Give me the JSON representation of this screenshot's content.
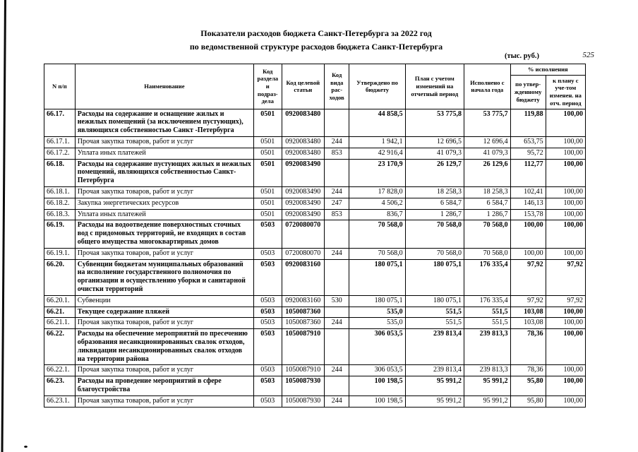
{
  "document": {
    "title_line1": "Показатели расходов бюджета Санкт-Петербурга за 2022 год",
    "title_line2": "по ведомственной структуре расходов бюджета Санкт-Петербурга",
    "units_note": "(тыс. руб.)",
    "page_number": "525"
  },
  "table": {
    "headers": {
      "num": "N п/п",
      "name": "Наименование",
      "razdel": "Код раздела и подраз-дела",
      "target": "Код целевой статьи",
      "vid": "Код вида рас-ходов",
      "approved": "Утверждено по бюджету",
      "plan": "План с учетом изменений на отчетный период",
      "executed": "Исполнено с начала года",
      "percent_group": "% исполнения",
      "pct_budget": "по утвер-жденному бюджету",
      "pct_plan": "к плану с уче-том изменен. на отч. период"
    },
    "rows": [
      {
        "num": "66.17.",
        "bold": true,
        "name": "Расходы на содержание и оснащение жилых и нежилых помещений (за исключением пустующих), являющихся собственностью Санкт -Петербурга",
        "razdel": "0501",
        "target": "0920083480",
        "vid": "",
        "approved": "44 858,5",
        "plan": "53 775,8",
        "executed": "53 775,7",
        "pct_budget": "119,88",
        "pct_plan": "100,00"
      },
      {
        "num": "66.17.1.",
        "bold": false,
        "name": "Прочая закупка товаров, работ и услуг",
        "razdel": "0501",
        "target": "0920083480",
        "vid": "244",
        "approved": "1 942,1",
        "plan": "12 696,5",
        "executed": "12 696,4",
        "pct_budget": "653,75",
        "pct_plan": "100,00"
      },
      {
        "num": "66.17.2.",
        "bold": false,
        "name": "Уплата иных платежей",
        "razdel": "0501",
        "target": "0920083480",
        "vid": "853",
        "approved": "42 916,4",
        "plan": "41 079,3",
        "executed": "41 079,3",
        "pct_budget": "95,72",
        "pct_plan": "100,00"
      },
      {
        "num": "66.18.",
        "bold": true,
        "name": "Расходы на содержание пустующих жилых и нежилых помещений, являющихся собственностью Санкт-Петербурга",
        "razdel": "0501",
        "target": "0920083490",
        "vid": "",
        "approved": "23 170,9",
        "plan": "26 129,7",
        "executed": "26 129,6",
        "pct_budget": "112,77",
        "pct_plan": "100,00"
      },
      {
        "num": "66.18.1.",
        "bold": false,
        "name": "Прочая закупка товаров, работ и услуг",
        "razdel": "0501",
        "target": "0920083490",
        "vid": "244",
        "approved": "17 828,0",
        "plan": "18 258,3",
        "executed": "18 258,3",
        "pct_budget": "102,41",
        "pct_plan": "100,00"
      },
      {
        "num": "66.18.2.",
        "bold": false,
        "name": "Закупка энергетических ресурсов",
        "razdel": "0501",
        "target": "0920083490",
        "vid": "247",
        "approved": "4 506,2",
        "plan": "6 584,7",
        "executed": "6 584,7",
        "pct_budget": "146,13",
        "pct_plan": "100,00"
      },
      {
        "num": "66.18.3.",
        "bold": false,
        "name": "Уплата иных платежей",
        "razdel": "0501",
        "target": "0920083490",
        "vid": "853",
        "approved": "836,7",
        "plan": "1 286,7",
        "executed": "1 286,7",
        "pct_budget": "153,78",
        "pct_plan": "100,00"
      },
      {
        "num": "66.19.",
        "bold": true,
        "name": "Расходы на водоотведение поверхностных сточных вод с придомовых территорий, не входящих в состав общего имущества многоквартирных домов",
        "razdel": "0503",
        "target": "0720080070",
        "vid": "",
        "approved": "70 568,0",
        "plan": "70 568,0",
        "executed": "70 568,0",
        "pct_budget": "100,00",
        "pct_plan": "100,00"
      },
      {
        "num": "66.19.1.",
        "bold": false,
        "name": "Прочая закупка товаров, работ и услуг",
        "razdel": "0503",
        "target": "0720080070",
        "vid": "244",
        "approved": "70 568,0",
        "plan": "70 568,0",
        "executed": "70 568,0",
        "pct_budget": "100,00",
        "pct_plan": "100,00"
      },
      {
        "num": "66.20.",
        "bold": true,
        "name": "Субвенции бюджетам муниципальных образований на исполнение государственного полномочия по организации и осуществлению уборки и санитарной очистки территорий",
        "razdel": "0503",
        "target": "0920083160",
        "vid": "",
        "approved": "180 075,1",
        "plan": "180 075,1",
        "executed": "176 335,4",
        "pct_budget": "97,92",
        "pct_plan": "97,92"
      },
      {
        "num": "66.20.1.",
        "bold": false,
        "name": "Субвенции",
        "razdel": "0503",
        "target": "0920083160",
        "vid": "530",
        "approved": "180 075,1",
        "plan": "180 075,1",
        "executed": "176 335,4",
        "pct_budget": "97,92",
        "pct_plan": "97,92"
      },
      {
        "num": "66.21.",
        "bold": true,
        "name": "Текущее содержание пляжей",
        "razdel": "0503",
        "target": "1050087360",
        "vid": "",
        "approved": "535,0",
        "plan": "551,5",
        "executed": "551,5",
        "pct_budget": "103,08",
        "pct_plan": "100,00"
      },
      {
        "num": "66.21.1.",
        "bold": false,
        "name": "Прочая закупка товаров, работ и услуг",
        "razdel": "0503",
        "target": "1050087360",
        "vid": "244",
        "approved": "535,0",
        "plan": "551,5",
        "executed": "551,5",
        "pct_budget": "103,08",
        "pct_plan": "100,00"
      },
      {
        "num": "66.22.",
        "bold": true,
        "name": "Расходы на обеспечение мероприятий по пресечению образования несанкционированных свалок отходов, ликвидации несанкционированных свалок отходов на территории района",
        "razdel": "0503",
        "target": "1050087910",
        "vid": "",
        "approved": "306 053,5",
        "plan": "239 813,4",
        "executed": "239 813,3",
        "pct_budget": "78,36",
        "pct_plan": "100,00"
      },
      {
        "num": "66.22.1.",
        "bold": false,
        "name": "Прочая закупка товаров, работ и услуг",
        "razdel": "0503",
        "target": "1050087910",
        "vid": "244",
        "approved": "306 053,5",
        "plan": "239 813,4",
        "executed": "239 813,3",
        "pct_budget": "78,36",
        "pct_plan": "100,00"
      },
      {
        "num": "66.23.",
        "bold": true,
        "name": "Расходы на проведение мероприятий в сфере благоустройства",
        "razdel": "0503",
        "target": "1050087930",
        "vid": "",
        "approved": "100 198,5",
        "plan": "95 991,2",
        "executed": "95 991,2",
        "pct_budget": "95,80",
        "pct_plan": "100,00"
      },
      {
        "num": "66.23.1.",
        "bold": false,
        "name": "Прочая закупка товаров, работ и услуг",
        "razdel": "0503",
        "target": "1050087930",
        "vid": "244",
        "approved": "100 198,5",
        "plan": "95 991,2",
        "executed": "95 991,2",
        "pct_budget": "95,80",
        "pct_plan": "100,00"
      }
    ]
  }
}
